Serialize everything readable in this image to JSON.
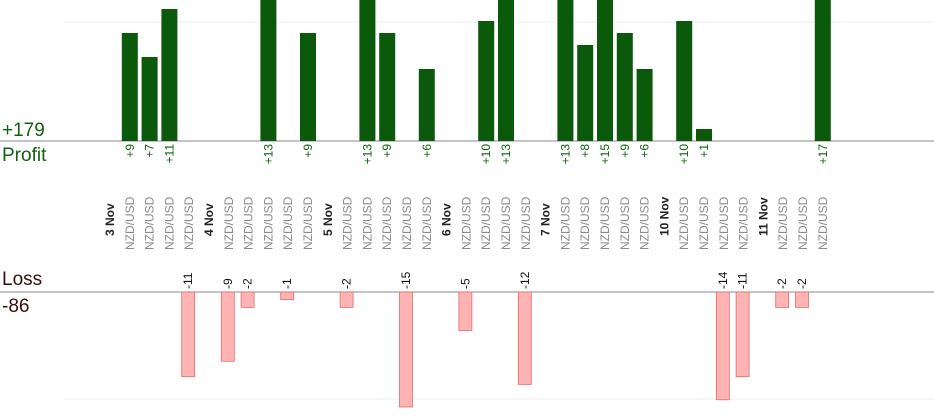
{
  "summary": {
    "profit_total": "+179",
    "profit_label": "Profit",
    "loss_label": "Loss",
    "loss_total": "-86"
  },
  "colors": {
    "profit_bar": "#0b5a0b",
    "profit_text": "#126112",
    "loss_bar": "#ffb3b3",
    "loss_border": "#e06c6c",
    "date_text": "#222222",
    "pair_text": "#8a8a8a",
    "axis": "#888888",
    "grid": "#eeeeee"
  },
  "chart_data": {
    "type": "bar",
    "pair_label": "NZD/USD",
    "date_labels": [
      "3 Nov",
      "4 Nov",
      "5 Nov",
      "6 Nov",
      "7 Nov",
      "10 Nov",
      "11 Nov"
    ],
    "columns": [
      {
        "date": "3 Nov",
        "trades": [
          9,
          7,
          11,
          -11
        ]
      },
      {
        "date": "4 Nov",
        "trades": [
          -9,
          -2,
          13,
          -1,
          9
        ]
      },
      {
        "date": "5 Nov",
        "trades": [
          -2,
          13,
          9,
          -15,
          6
        ]
      },
      {
        "date": "6 Nov",
        "trades": [
          -5,
          10,
          13,
          -12
        ]
      },
      {
        "date": "7 Nov",
        "trades": [
          13,
          8,
          15,
          9,
          6
        ]
      },
      {
        "date": "10 Nov",
        "trades": [
          10,
          1,
          -14,
          -11
        ]
      },
      {
        "date": "11 Nov",
        "trades": [
          -2,
          -2,
          17
        ]
      }
    ]
  }
}
